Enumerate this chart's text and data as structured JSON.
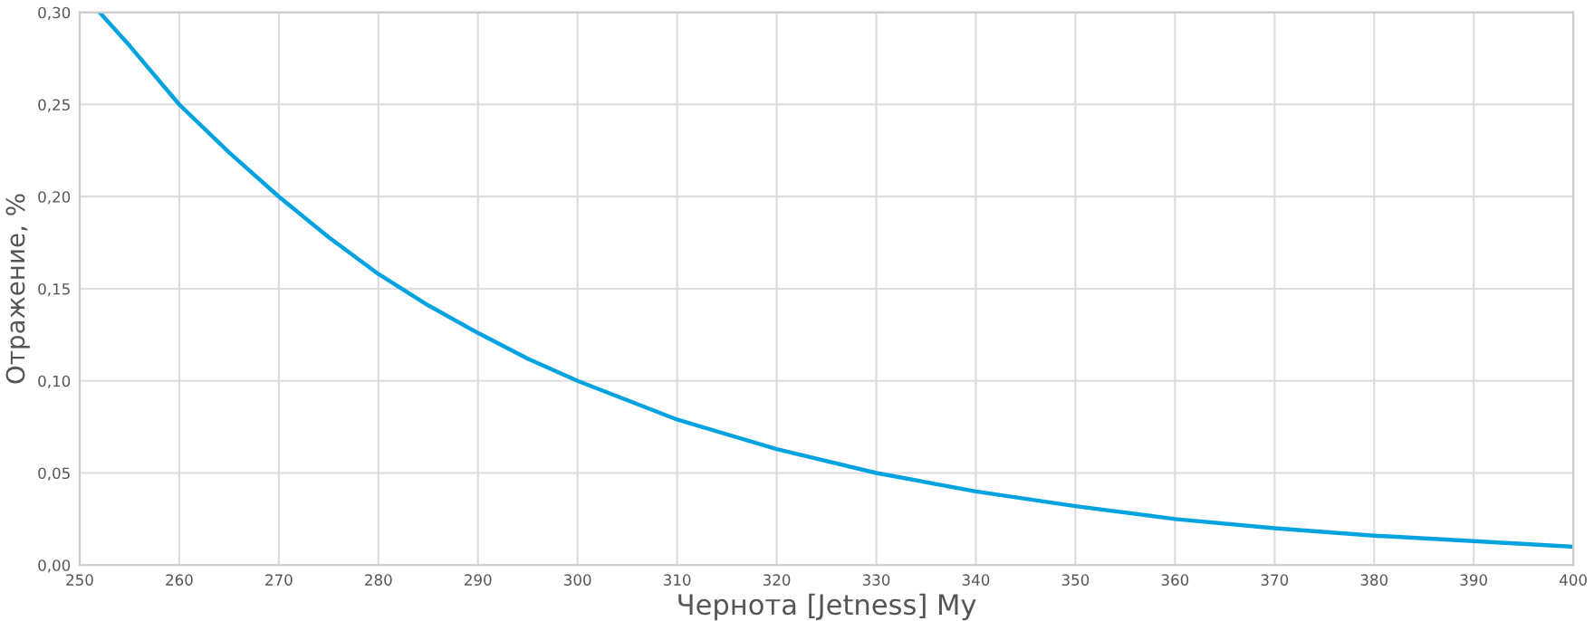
{
  "chart_data": {
    "type": "line",
    "xlabel": "Чернота [Jetness] My",
    "ylabel": "Отражение, %",
    "series": [
      {
        "color": "#00a3e0",
        "x": [
          252,
          255,
          260,
          265,
          270,
          275,
          280,
          285,
          290,
          295,
          300,
          310,
          320,
          330,
          340,
          350,
          360,
          370,
          380,
          390,
          400
        ],
        "values": [
          0.3,
          0.282,
          0.25,
          0.224,
          0.2,
          0.178,
          0.158,
          0.141,
          0.126,
          0.112,
          0.1,
          0.079,
          0.063,
          0.05,
          0.04,
          0.032,
          0.025,
          0.02,
          0.016,
          0.013,
          0.01
        ]
      }
    ],
    "xlim": [
      250,
      400
    ],
    "xticks": [
      250,
      260,
      270,
      280,
      290,
      300,
      310,
      320,
      330,
      340,
      350,
      360,
      370,
      380,
      390,
      400
    ],
    "ylim": [
      0,
      0.3
    ],
    "yticks": [
      {
        "value": 0,
        "label": "0,00"
      },
      {
        "value": 0.05,
        "label": "0,05"
      },
      {
        "value": 0.1,
        "label": "0,10"
      },
      {
        "value": 0.15,
        "label": "0,15"
      },
      {
        "value": 0.2,
        "label": "0,20"
      },
      {
        "value": 0.25,
        "label": "0,25"
      },
      {
        "value": 0.3,
        "label": "0,30"
      }
    ],
    "grid": true,
    "marker": "none",
    "line_style": "solid"
  }
}
